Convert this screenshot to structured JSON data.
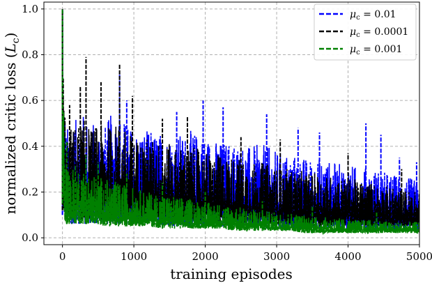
{
  "chart_data": {
    "type": "line",
    "xlabel": "training episodes",
    "ylabel": "normalized critic loss (L_c)",
    "ylabel_main": "normalized critic loss (",
    "ylabel_symbol": "L",
    "ylabel_subscript": "c",
    "ylabel_close": ")",
    "xlim": [
      -260,
      5000
    ],
    "ylim": [
      -0.03,
      1.03
    ],
    "xticks": [
      0,
      1000,
      2000,
      3000,
      4000,
      5000
    ],
    "xtick_labels": [
      "0",
      "1000",
      "2000",
      "3000",
      "4000",
      "5000"
    ],
    "yticks": [
      0.0,
      0.2,
      0.4,
      0.6,
      0.8,
      1.0
    ],
    "ytick_labels": [
      "0.0",
      "0.2",
      "0.4",
      "0.6",
      "0.8",
      "1.0"
    ],
    "grid": true,
    "legend_position": "top-right",
    "series": [
      {
        "name": "μc = 0.01",
        "legend_label": "μ_c = 0.01",
        "legend_symbol": "μ",
        "legend_subscript": "c",
        "legend_value": " = 0.01",
        "color": "#0000ff",
        "x": [
          0,
          20,
          50,
          100,
          200,
          300,
          400,
          500,
          600,
          700,
          800,
          900,
          1000,
          1200,
          1400,
          1600,
          1800,
          2000,
          2200,
          2400,
          2600,
          2800,
          3000,
          3200,
          3400,
          3600,
          3800,
          4000,
          4200,
          4400,
          4600,
          4800,
          5000
        ],
        "upper": [
          1.0,
          0.72,
          0.48,
          0.5,
          0.52,
          0.55,
          0.5,
          0.52,
          0.5,
          0.55,
          0.55,
          0.5,
          0.48,
          0.47,
          0.46,
          0.45,
          0.47,
          0.45,
          0.42,
          0.43,
          0.4,
          0.41,
          0.38,
          0.37,
          0.35,
          0.35,
          0.33,
          0.32,
          0.31,
          0.3,
          0.28,
          0.27,
          0.25
        ],
        "lower": [
          0.1,
          0.07,
          0.06,
          0.06,
          0.06,
          0.06,
          0.06,
          0.06,
          0.06,
          0.06,
          0.06,
          0.06,
          0.06,
          0.06,
          0.05,
          0.05,
          0.05,
          0.05,
          0.05,
          0.05,
          0.05,
          0.04,
          0.04,
          0.04,
          0.04,
          0.04,
          0.04,
          0.03,
          0.03,
          0.03,
          0.03,
          0.03,
          0.03
        ],
        "spikes": [
          {
            "x": 800,
            "y": 0.72
          },
          {
            "x": 900,
            "y": 0.6
          },
          {
            "x": 1600,
            "y": 0.55
          },
          {
            "x": 1970,
            "y": 0.6
          },
          {
            "x": 2250,
            "y": 0.57
          },
          {
            "x": 2860,
            "y": 0.54
          },
          {
            "x": 3300,
            "y": 0.48
          },
          {
            "x": 3600,
            "y": 0.46
          },
          {
            "x": 4250,
            "y": 0.5
          },
          {
            "x": 4460,
            "y": 0.45
          },
          {
            "x": 4720,
            "y": 0.35
          },
          {
            "x": 4960,
            "y": 0.33
          }
        ]
      },
      {
        "name": "μc = 0.0001",
        "legend_label": "μ_c = 0.0001",
        "legend_symbol": "μ",
        "legend_subscript": "c",
        "legend_value": " = 0.0001",
        "color": "#000000",
        "x": [
          0,
          20,
          50,
          100,
          200,
          300,
          400,
          500,
          600,
          700,
          800,
          900,
          1000,
          1200,
          1400,
          1600,
          1800,
          2000,
          2200,
          2400,
          2600,
          2800,
          3000,
          3200,
          3400,
          3600,
          3800,
          4000,
          4200,
          4400,
          4600,
          4800,
          5000
        ],
        "upper": [
          1.0,
          0.7,
          0.46,
          0.48,
          0.5,
          0.52,
          0.48,
          0.5,
          0.48,
          0.5,
          0.5,
          0.47,
          0.44,
          0.44,
          0.42,
          0.4,
          0.4,
          0.38,
          0.36,
          0.36,
          0.33,
          0.33,
          0.31,
          0.3,
          0.29,
          0.28,
          0.27,
          0.26,
          0.25,
          0.24,
          0.22,
          0.21,
          0.2
        ],
        "lower": [
          0.12,
          0.09,
          0.08,
          0.08,
          0.08,
          0.08,
          0.08,
          0.08,
          0.08,
          0.08,
          0.08,
          0.08,
          0.08,
          0.07,
          0.07,
          0.07,
          0.07,
          0.07,
          0.06,
          0.06,
          0.06,
          0.06,
          0.06,
          0.06,
          0.05,
          0.05,
          0.05,
          0.05,
          0.05,
          0.05,
          0.05,
          0.05,
          0.05
        ],
        "spikes": [
          {
            "x": 100,
            "y": 0.58
          },
          {
            "x": 250,
            "y": 0.66
          },
          {
            "x": 330,
            "y": 0.79
          },
          {
            "x": 540,
            "y": 0.68
          },
          {
            "x": 800,
            "y": 0.76
          },
          {
            "x": 980,
            "y": 0.62
          },
          {
            "x": 1400,
            "y": 0.52
          },
          {
            "x": 1750,
            "y": 0.53
          },
          {
            "x": 2500,
            "y": 0.44
          },
          {
            "x": 3050,
            "y": 0.43
          },
          {
            "x": 4000,
            "y": 0.37
          },
          {
            "x": 4750,
            "y": 0.3
          }
        ]
      },
      {
        "name": "μc = 0.001",
        "legend_label": "μ_c = 0.001",
        "legend_symbol": "μ",
        "legend_subscript": "c",
        "legend_value": " = 0.001",
        "color": "#008000",
        "x": [
          0,
          20,
          50,
          100,
          200,
          300,
          400,
          500,
          600,
          700,
          800,
          900,
          1000,
          1200,
          1400,
          1600,
          1800,
          2000,
          2200,
          2400,
          2600,
          2800,
          3000,
          3200,
          3400,
          3600,
          3800,
          4000,
          4200,
          4400,
          4600,
          4800,
          5000
        ],
        "upper": [
          1.0,
          0.55,
          0.33,
          0.32,
          0.32,
          0.3,
          0.28,
          0.27,
          0.26,
          0.25,
          0.24,
          0.23,
          0.22,
          0.2,
          0.19,
          0.18,
          0.17,
          0.16,
          0.15,
          0.14,
          0.13,
          0.12,
          0.11,
          0.11,
          0.1,
          0.09,
          0.09,
          0.08,
          0.08,
          0.08,
          0.07,
          0.07,
          0.07
        ],
        "lower": [
          0.15,
          0.08,
          0.06,
          0.06,
          0.06,
          0.06,
          0.06,
          0.06,
          0.05,
          0.05,
          0.05,
          0.05,
          0.05,
          0.05,
          0.04,
          0.04,
          0.04,
          0.04,
          0.04,
          0.03,
          0.03,
          0.03,
          0.03,
          0.03,
          0.02,
          0.02,
          0.02,
          0.02,
          0.02,
          0.02,
          0.02,
          0.02,
          0.02
        ],
        "spikes": [
          {
            "x": 60,
            "y": 0.42
          },
          {
            "x": 330,
            "y": 0.36
          },
          {
            "x": 500,
            "y": 0.33
          },
          {
            "x": 900,
            "y": 0.28
          },
          {
            "x": 1400,
            "y": 0.24
          },
          {
            "x": 2000,
            "y": 0.2
          },
          {
            "x": 2800,
            "y": 0.16
          },
          {
            "x": 3500,
            "y": 0.14
          },
          {
            "x": 4400,
            "y": 0.11
          }
        ]
      }
    ]
  }
}
